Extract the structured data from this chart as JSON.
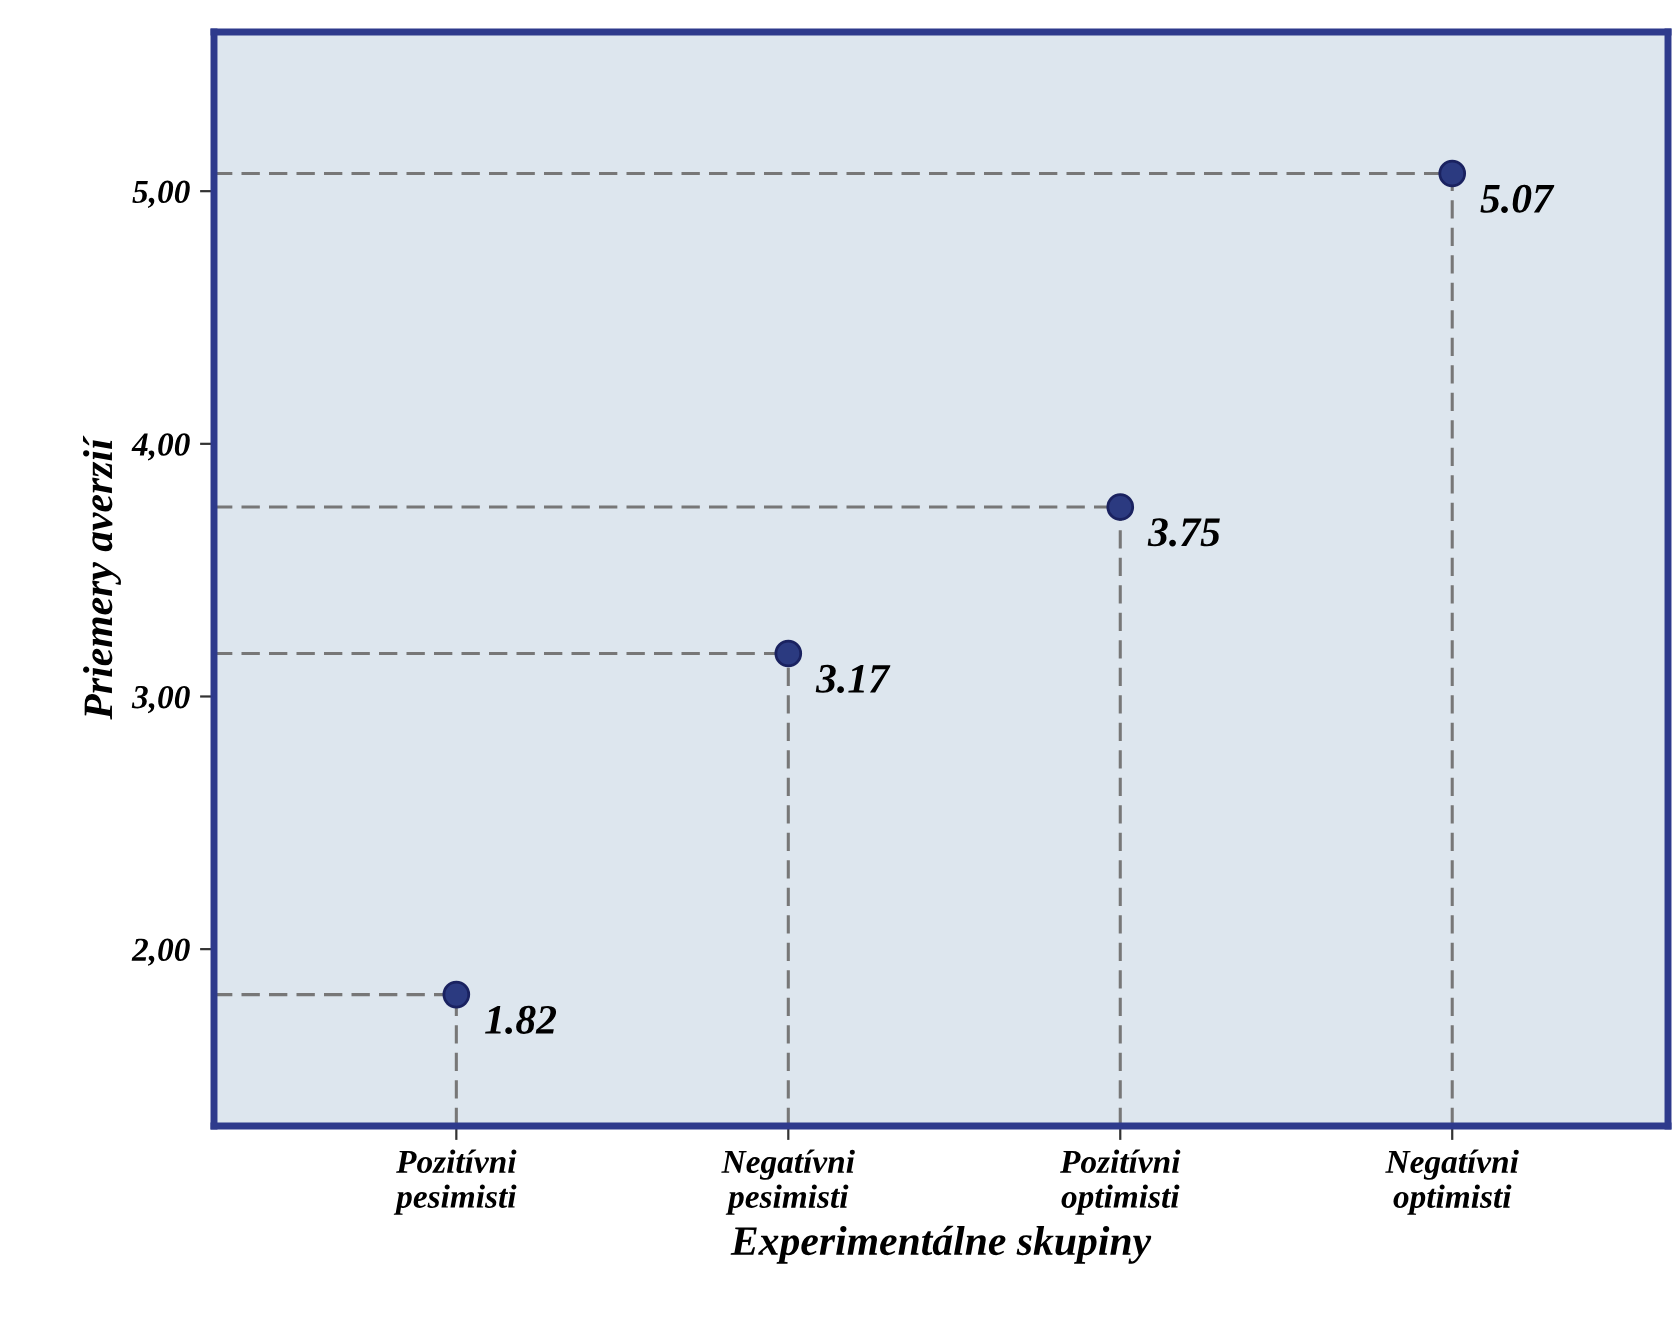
{
  "chart_data": {
    "type": "scatter",
    "xlabel": "Experimentálne skupiny",
    "ylabel": "Priemery averzií",
    "categories": [
      "Pozitívni\npesimisti",
      "Negatívni\npesimisti",
      "Pozitívni\noptimisti",
      "Negatívni\noptimisti"
    ],
    "values": [
      1.82,
      3.17,
      3.75,
      5.07
    ],
    "color": "#2b3a80",
    "data_labels": true,
    "line_style": "dashed",
    "marker": "circle",
    "ylim": [
      1.3,
      5.63
    ],
    "yticks": [
      {
        "value": 2,
        "label": "2,00"
      },
      {
        "value": 3,
        "label": "3,00"
      },
      {
        "value": 4,
        "label": "4,00"
      },
      {
        "value": 5,
        "label": "5,00"
      }
    ]
  }
}
